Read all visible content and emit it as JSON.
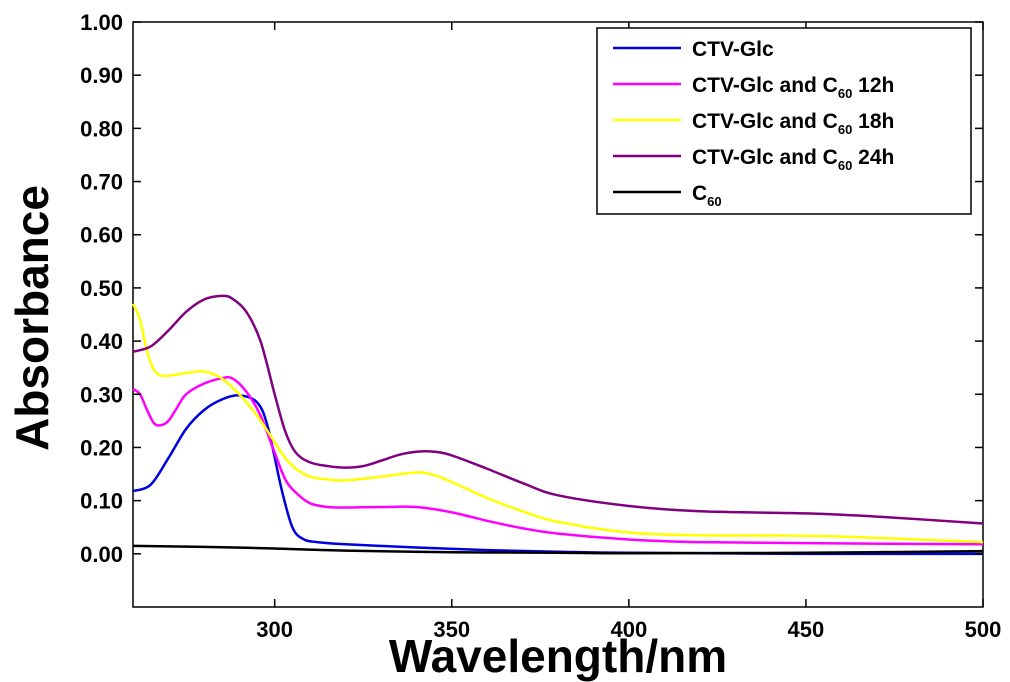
{
  "chart_data": {
    "type": "line",
    "xlabel": "Wavelength/nm",
    "ylabel": "Absorbance",
    "xlim": [
      260,
      500
    ],
    "ylim": [
      -0.1,
      1.0
    ],
    "x_ticks": [
      300,
      350,
      400,
      450,
      500
    ],
    "x_tick_labels": [
      "300",
      "350",
      "400",
      "450",
      "500"
    ],
    "y_ticks": [
      0.0,
      0.1,
      0.2,
      0.3,
      0.4,
      0.5,
      0.6,
      0.7,
      0.8,
      0.9,
      1.0
    ],
    "y_tick_labels": [
      "0.00",
      "0.10",
      "0.20",
      "0.30",
      "0.40",
      "0.50",
      "0.60",
      "0.70",
      "0.80",
      "0.90",
      "1.00"
    ],
    "grid": false,
    "legend_position": "top-right",
    "series": [
      {
        "name": "CTV-Glc",
        "legend_parts": [
          "CTV-Glc"
        ],
        "color": "#0000e0",
        "x": [
          260,
          265,
          270,
          275,
          280,
          285,
          290,
          295,
          298,
          302,
          305,
          308,
          312,
          320,
          340,
          360,
          380,
          400,
          450,
          500
        ],
        "y": [
          0.118,
          0.13,
          0.18,
          0.235,
          0.27,
          0.29,
          0.298,
          0.285,
          0.24,
          0.12,
          0.05,
          0.028,
          0.022,
          0.018,
          0.012,
          0.007,
          0.004,
          0.002,
          0.0,
          0.0
        ]
      },
      {
        "name": "CTV-Glc and C60 12h",
        "legend_parts": [
          "CTV-Glc and C",
          "60",
          " 12h"
        ],
        "color": "#ff00ff",
        "x": [
          260,
          262,
          264,
          266,
          268,
          270,
          272,
          275,
          280,
          285,
          288,
          292,
          296,
          300,
          303,
          306,
          310,
          315,
          320,
          330,
          340,
          350,
          360,
          370,
          380,
          400,
          420,
          450,
          500
        ],
        "y": [
          0.31,
          0.3,
          0.27,
          0.245,
          0.242,
          0.25,
          0.27,
          0.3,
          0.32,
          0.33,
          0.33,
          0.305,
          0.26,
          0.19,
          0.14,
          0.115,
          0.095,
          0.088,
          0.087,
          0.088,
          0.088,
          0.078,
          0.062,
          0.048,
          0.038,
          0.027,
          0.022,
          0.02,
          0.018
        ]
      },
      {
        "name": "CTV-Glc and C60 18h",
        "legend_parts": [
          "CTV-Glc and C",
          "60",
          " 18h"
        ],
        "color": "#ffff00",
        "x": [
          260,
          262,
          264,
          266,
          268,
          270,
          275,
          280,
          285,
          290,
          295,
          300,
          303,
          306,
          310,
          315,
          320,
          330,
          340,
          345,
          350,
          360,
          370,
          380,
          400,
          420,
          450,
          470,
          500
        ],
        "y": [
          0.47,
          0.44,
          0.38,
          0.345,
          0.335,
          0.335,
          0.34,
          0.343,
          0.33,
          0.3,
          0.26,
          0.21,
          0.18,
          0.16,
          0.145,
          0.14,
          0.138,
          0.145,
          0.153,
          0.148,
          0.135,
          0.105,
          0.08,
          0.06,
          0.04,
          0.035,
          0.034,
          0.03,
          0.022
        ]
      },
      {
        "name": "CTV-Glc and C60 24h",
        "legend_parts": [
          "CTV-Glc and C",
          "60",
          " 24h"
        ],
        "color": "#800080",
        "x": [
          260,
          265,
          270,
          275,
          280,
          285,
          288,
          292,
          296,
          300,
          303,
          306,
          310,
          315,
          320,
          325,
          330,
          335,
          340,
          345,
          350,
          360,
          370,
          380,
          400,
          420,
          450,
          470,
          500
        ],
        "y": [
          0.38,
          0.39,
          0.42,
          0.455,
          0.478,
          0.485,
          0.48,
          0.455,
          0.4,
          0.3,
          0.23,
          0.19,
          0.172,
          0.165,
          0.162,
          0.165,
          0.175,
          0.186,
          0.192,
          0.192,
          0.185,
          0.16,
          0.133,
          0.11,
          0.09,
          0.08,
          0.076,
          0.07,
          0.057
        ]
      },
      {
        "name": "C60",
        "legend_parts": [
          "C",
          "60",
          ""
        ],
        "color": "#000000",
        "x": [
          260,
          280,
          300,
          320,
          350,
          380,
          400,
          450,
          500
        ],
        "y": [
          0.015,
          0.013,
          0.01,
          0.006,
          0.003,
          0.002,
          0.001,
          0.002,
          0.005
        ]
      }
    ]
  }
}
